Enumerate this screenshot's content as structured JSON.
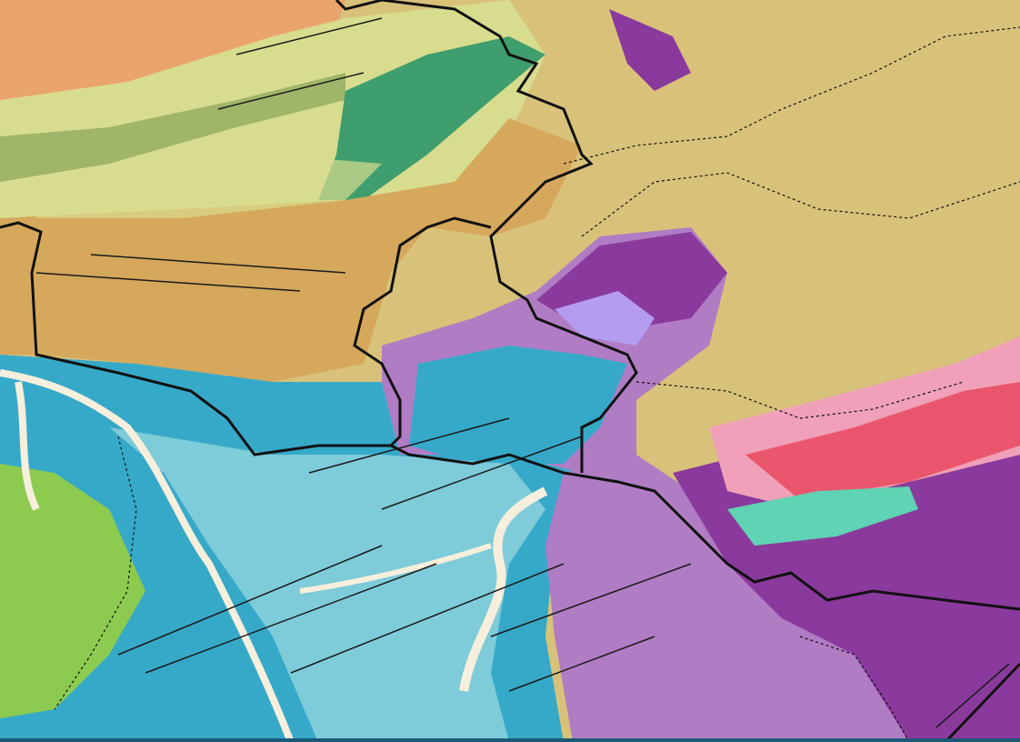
{
  "map": {
    "type": "geological map",
    "colors": {
      "background_strip": "#1a5a78",
      "orange_unit": "#e9a46c",
      "light_green_unit": "#d8dc8e",
      "olive_unit": "#9fb56a",
      "tan_unit": "#d6a85c",
      "khaki_unit": "#d8c27a",
      "blue_unit": "#36a9c9",
      "light_blue_unit": "#7ecbd9",
      "purple_unit": "#b07cc4",
      "dark_purple_unit": "#8a3a9c",
      "violet_unit": "#b49cf0",
      "red_unit": "#e9566b",
      "pink_unit": "#f0a0b8",
      "teal_unit": "#5fd3b3",
      "green_unit": "#8ccb4f",
      "dark_green_unit": "#3f9e6e",
      "river": "#f7efdc",
      "boundary": "#111111",
      "fault": "#1a1a1a"
    }
  }
}
